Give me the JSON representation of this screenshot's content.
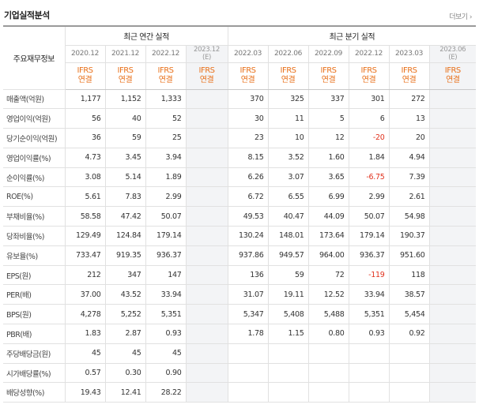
{
  "header": {
    "title": "기업실적분석",
    "more_label": "더보기 ›"
  },
  "table": {
    "row_header_label": "주요재무정보",
    "annual_group_label": "최근 연간 실적",
    "quarterly_group_label": "최근 분기 실적",
    "annual_periods": [
      "2020.12",
      "2021.12",
      "2022.12",
      "2023.12\n(E)"
    ],
    "quarterly_periods": [
      "2022.03",
      "2022.06",
      "2022.09",
      "2022.12",
      "2023.03",
      "2023.06\n(E)"
    ],
    "ifrs_label": "IFRS\n연결",
    "rows": [
      {
        "label": "매출액(억원)",
        "annual": [
          "1,177",
          "1,152",
          "1,333",
          ""
        ],
        "quarterly": [
          "370",
          "325",
          "337",
          "301",
          "272",
          ""
        ]
      },
      {
        "label": "영업이익(억원)",
        "annual": [
          "56",
          "40",
          "52",
          ""
        ],
        "quarterly": [
          "30",
          "11",
          "5",
          "6",
          "13",
          ""
        ]
      },
      {
        "label": "당기순이익(억원)",
        "annual": [
          "36",
          "59",
          "25",
          ""
        ],
        "quarterly": [
          "23",
          "10",
          "12",
          "-20",
          "20",
          ""
        ]
      },
      {
        "label": "영업이익률(%)",
        "annual": [
          "4.73",
          "3.45",
          "3.94",
          ""
        ],
        "quarterly": [
          "8.15",
          "3.52",
          "1.60",
          "1.84",
          "4.94",
          ""
        ]
      },
      {
        "label": "순이익률(%)",
        "annual": [
          "3.08",
          "5.14",
          "1.89",
          ""
        ],
        "quarterly": [
          "6.26",
          "3.07",
          "3.65",
          "-6.75",
          "7.39",
          ""
        ]
      },
      {
        "label": "ROE(%)",
        "annual": [
          "5.61",
          "7.83",
          "2.99",
          ""
        ],
        "quarterly": [
          "6.72",
          "6.55",
          "6.99",
          "2.99",
          "2.61",
          ""
        ]
      },
      {
        "label": "부채비율(%)",
        "annual": [
          "58.58",
          "47.42",
          "50.07",
          ""
        ],
        "quarterly": [
          "49.53",
          "40.47",
          "44.09",
          "50.07",
          "54.98",
          ""
        ]
      },
      {
        "label": "당좌비율(%)",
        "annual": [
          "129.49",
          "124.84",
          "179.14",
          ""
        ],
        "quarterly": [
          "130.24",
          "148.01",
          "173.64",
          "179.14",
          "190.37",
          ""
        ]
      },
      {
        "label": "유보율(%)",
        "annual": [
          "733.47",
          "919.35",
          "936.37",
          ""
        ],
        "quarterly": [
          "937.86",
          "949.57",
          "964.00",
          "936.37",
          "951.60",
          ""
        ]
      },
      {
        "label": "EPS(원)",
        "annual": [
          "212",
          "347",
          "147",
          ""
        ],
        "quarterly": [
          "136",
          "59",
          "72",
          "-119",
          "118",
          ""
        ]
      },
      {
        "label": "PER(배)",
        "annual": [
          "37.00",
          "43.52",
          "33.94",
          ""
        ],
        "quarterly": [
          "31.07",
          "19.11",
          "12.52",
          "33.94",
          "38.57",
          ""
        ]
      },
      {
        "label": "BPS(원)",
        "annual": [
          "4,278",
          "5,252",
          "5,351",
          ""
        ],
        "quarterly": [
          "5,347",
          "5,408",
          "5,488",
          "5,351",
          "5,454",
          ""
        ]
      },
      {
        "label": "PBR(배)",
        "annual": [
          "1.83",
          "2.87",
          "0.93",
          ""
        ],
        "quarterly": [
          "1.78",
          "1.15",
          "0.80",
          "0.93",
          "0.92",
          ""
        ]
      },
      {
        "label": "주당배당금(원)",
        "annual": [
          "45",
          "45",
          "45",
          ""
        ],
        "quarterly": [
          "",
          "",
          "",
          "",
          "",
          ""
        ]
      },
      {
        "label": "시가배당률(%)",
        "annual": [
          "0.57",
          "0.30",
          "0.90",
          ""
        ],
        "quarterly": [
          "",
          "",
          "",
          "",
          "",
          ""
        ]
      },
      {
        "label": "배당성향(%)",
        "annual": [
          "19.43",
          "12.41",
          "28.22",
          ""
        ],
        "quarterly": [
          "",
          "",
          "",
          "",
          "",
          ""
        ]
      }
    ]
  },
  "colors": {
    "ifrs": "#e8701a",
    "negative": "#e1321e",
    "estimate_bg": "#f3f4f6"
  }
}
